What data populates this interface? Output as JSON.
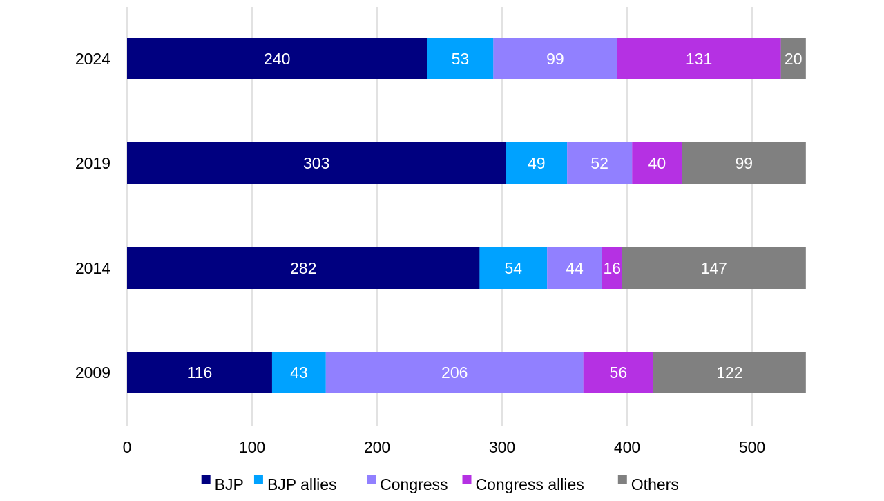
{
  "chart_data": {
    "type": "bar",
    "orientation": "horizontal",
    "stacked": true,
    "categories": [
      "2024",
      "2019",
      "2014",
      "2009"
    ],
    "series": [
      {
        "name": "BJP",
        "values": [
          240,
          303,
          282,
          116
        ],
        "color": "#000080"
      },
      {
        "name": "BJP allies",
        "values": [
          53,
          49,
          54,
          43
        ],
        "color": "#00A2FF"
      },
      {
        "name": "Congress",
        "values": [
          99,
          52,
          44,
          206
        ],
        "color": "#9180FF"
      },
      {
        "name": "Congress allies",
        "values": [
          131,
          40,
          16,
          56
        ],
        "color": "#B531E3"
      },
      {
        "name": "Others",
        "values": [
          20,
          99,
          147,
          122
        ],
        "color": "#808080"
      }
    ],
    "xlim": [
      0,
      550
    ],
    "xticks": [
      "0",
      "100",
      "200",
      "300",
      "400",
      "500"
    ],
    "xtick_values": [
      0,
      100,
      200,
      300,
      400,
      500
    ],
    "grid": true,
    "legend_position": "bottom",
    "data_labels": true,
    "label_color": "#ffffff",
    "title": "",
    "xlabel": "",
    "ylabel": ""
  }
}
